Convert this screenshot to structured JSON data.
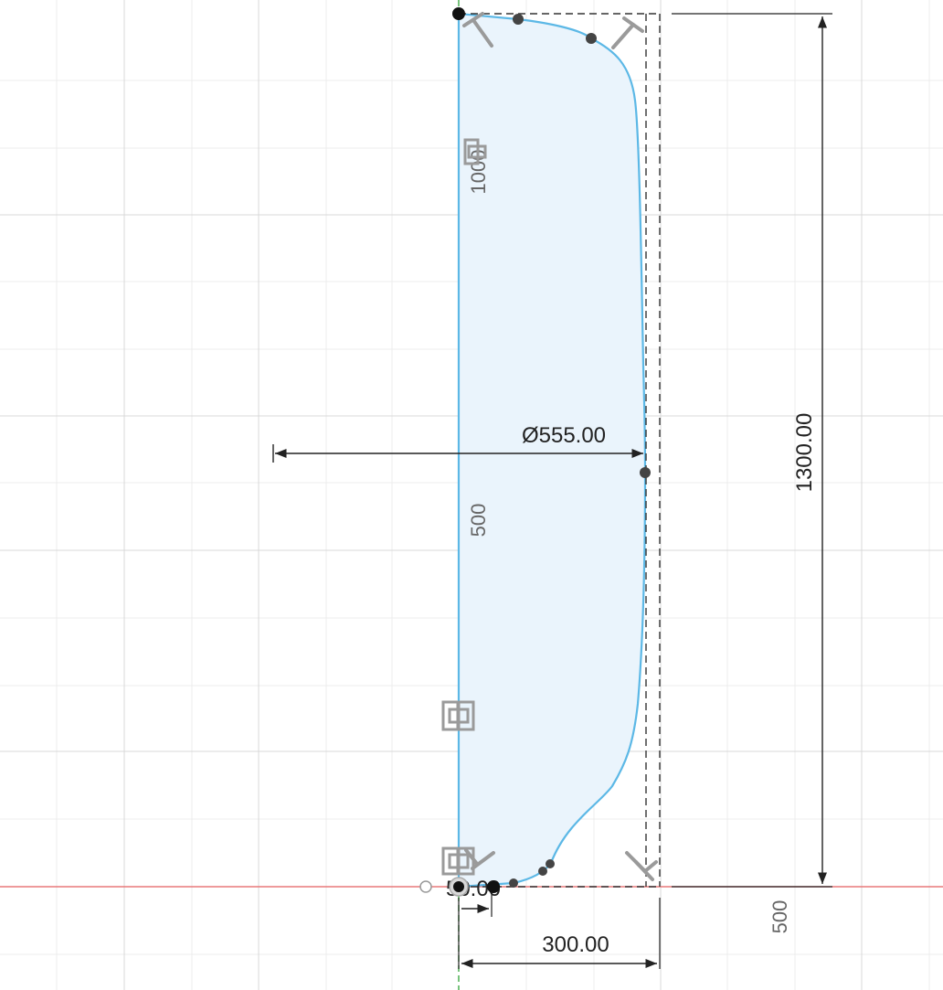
{
  "sketch": {
    "dimensions": {
      "diameter": "Ø555.00",
      "height": "1300.00",
      "width": "300.00",
      "small_offset": "50.00"
    },
    "axis_labels": {
      "y_1000": "1000",
      "y_500": "500",
      "x_500": "500"
    }
  },
  "colors": {
    "profile_stroke": "#5cb8e6",
    "profile_fill": "#eaf4fc",
    "x_axis": "#e8787a",
    "y_axis": "#4caf50",
    "dimension": "#222222",
    "constraint_glyph": "#9a9a9a",
    "grid_major": "#dcdcdc",
    "grid_minor": "#efefef"
  }
}
